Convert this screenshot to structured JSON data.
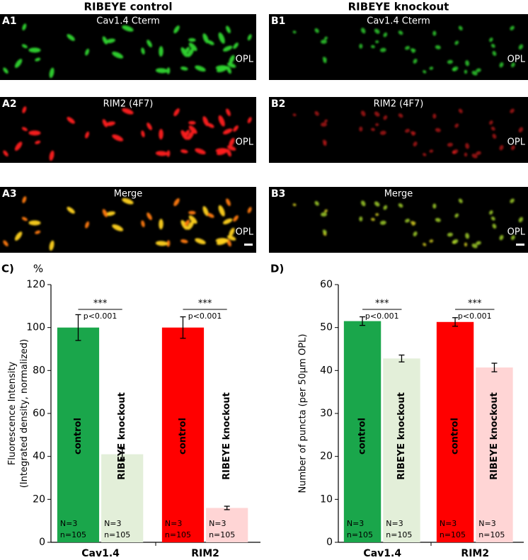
{
  "panels": {
    "columns": [
      {
        "title": "RIBEYE control",
        "labels": [
          "A1",
          "A2",
          "A3"
        ]
      },
      {
        "title": "RIBEYE knockout",
        "labels": [
          "B1",
          "B2",
          "B3"
        ]
      }
    ],
    "captions": [
      "Cav1.4 Cterm",
      "RIM2 (4F7)",
      "Merge"
    ],
    "region": "OPL"
  },
  "chart_data": [
    {
      "type": "bar",
      "panel_label": "C)",
      "y_unit": "%",
      "ylabel": [
        "Fluorescence Intensity",
        "(Integrated density, normalized)"
      ],
      "categories": [
        "Cav1.4",
        "RIM2"
      ],
      "series": [
        {
          "name": "control",
          "colors": [
            "#1aa64b",
            "#ff0000"
          ],
          "values": [
            100,
            100
          ],
          "errors": [
            6,
            5
          ]
        },
        {
          "name": "RIBEYE knockout",
          "colors": [
            "#e3efd9",
            "#ffd5d5"
          ],
          "values": [
            41,
            16
          ],
          "errors": [
            2.5,
            0.8
          ]
        }
      ],
      "bar_notes": [
        "N=3",
        "n=105"
      ],
      "significance": [
        {
          "stars": "***",
          "p": "p<0.001"
        },
        {
          "stars": "***",
          "p": "p<0.001"
        }
      ],
      "ylim": [
        0,
        120
      ],
      "yticks": [
        0,
        20,
        40,
        60,
        80,
        100,
        120
      ]
    },
    {
      "type": "bar",
      "panel_label": "D)",
      "ylabel": [
        "Number of puncta (per 50μm OPL)"
      ],
      "categories": [
        "Cav1.4",
        "RIM2"
      ],
      "series": [
        {
          "name": "control",
          "colors": [
            "#1aa64b",
            "#ff0000"
          ],
          "values": [
            51.5,
            51.3
          ],
          "errors": [
            1,
            1
          ]
        },
        {
          "name": "RIBEYE knockout",
          "colors": [
            "#e3efd9",
            "#ffd5d5"
          ],
          "values": [
            42.8,
            40.7
          ],
          "errors": [
            0.8,
            1
          ]
        }
      ],
      "bar_notes": [
        "N=3",
        "n=105"
      ],
      "significance": [
        {
          "stars": "***",
          "p": "p<0.001"
        },
        {
          "stars": "***",
          "p": "p<0.001"
        }
      ],
      "ylim": [
        0,
        60
      ],
      "yticks": [
        0,
        10,
        20,
        30,
        40,
        50,
        60
      ]
    }
  ]
}
